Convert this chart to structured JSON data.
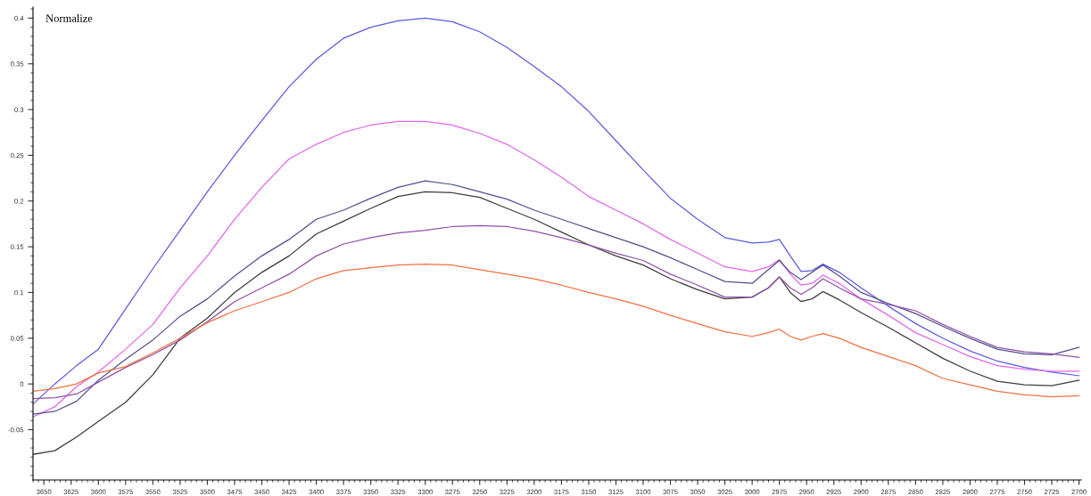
{
  "chart_data": {
    "type": "line",
    "title": "Normalize",
    "x": [
      3660,
      3640,
      3620,
      3600,
      3575,
      3550,
      3525,
      3500,
      3475,
      3450,
      3425,
      3400,
      3375,
      3350,
      3325,
      3300,
      3275,
      3250,
      3225,
      3200,
      3175,
      3150,
      3125,
      3100,
      3075,
      3050,
      3025,
      3000,
      2985,
      2975,
      2965,
      2955,
      2945,
      2935,
      2920,
      2900,
      2875,
      2850,
      2825,
      2800,
      2775,
      2750,
      2725,
      2700
    ],
    "series": [
      {
        "color": "#5a5ae0",
        "values": [
          -0.022,
          0.0,
          0.02,
          0.038,
          0.082,
          0.126,
          0.168,
          0.21,
          0.25,
          0.288,
          0.325,
          0.355,
          0.378,
          0.39,
          0.397,
          0.4,
          0.396,
          0.385,
          0.368,
          0.347,
          0.325,
          0.298,
          0.266,
          0.234,
          0.203,
          0.18,
          0.16,
          0.154,
          0.155,
          0.158,
          0.14,
          0.123,
          0.124,
          0.131,
          0.122,
          0.105,
          0.085,
          0.066,
          0.05,
          0.036,
          0.025,
          0.018,
          0.013,
          0.009
        ]
      },
      {
        "color": "#e066e8",
        "values": [
          -0.036,
          -0.025,
          -0.003,
          0.013,
          0.038,
          0.065,
          0.105,
          0.14,
          0.18,
          0.215,
          0.246,
          0.262,
          0.275,
          0.283,
          0.287,
          0.287,
          0.283,
          0.274,
          0.262,
          0.245,
          0.226,
          0.205,
          0.19,
          0.175,
          0.158,
          0.143,
          0.128,
          0.123,
          0.128,
          0.136,
          0.12,
          0.108,
          0.11,
          0.119,
          0.11,
          0.093,
          0.075,
          0.056,
          0.043,
          0.03,
          0.02,
          0.016,
          0.014,
          0.014
        ]
      },
      {
        "color": "#50508f",
        "values": [
          -0.033,
          -0.03,
          -0.019,
          0.004,
          0.027,
          0.048,
          0.074,
          0.093,
          0.118,
          0.14,
          0.158,
          0.18,
          0.19,
          0.203,
          0.215,
          0.222,
          0.218,
          0.21,
          0.202,
          0.19,
          0.18,
          0.17,
          0.16,
          0.15,
          0.138,
          0.125,
          0.112,
          0.11,
          0.125,
          0.135,
          0.122,
          0.114,
          0.122,
          0.13,
          0.118,
          0.1,
          0.088,
          0.077,
          0.063,
          0.05,
          0.038,
          0.033,
          0.032,
          0.04
        ]
      },
      {
        "color": "#3c3c3c",
        "values": [
          -0.077,
          -0.073,
          -0.058,
          -0.041,
          -0.02,
          0.01,
          0.05,
          0.072,
          0.1,
          0.122,
          0.14,
          0.164,
          0.178,
          0.192,
          0.205,
          0.21,
          0.209,
          0.204,
          0.192,
          0.18,
          0.166,
          0.152,
          0.14,
          0.13,
          0.115,
          0.103,
          0.093,
          0.095,
          0.105,
          0.117,
          0.1,
          0.09,
          0.093,
          0.101,
          0.092,
          0.078,
          0.062,
          0.045,
          0.028,
          0.014,
          0.003,
          -0.001,
          -0.002,
          0.004
        ]
      },
      {
        "color": "#9050a8",
        "values": [
          -0.016,
          -0.015,
          -0.011,
          0.002,
          0.018,
          0.032,
          0.048,
          0.068,
          0.09,
          0.105,
          0.12,
          0.14,
          0.153,
          0.16,
          0.165,
          0.168,
          0.172,
          0.173,
          0.172,
          0.167,
          0.16,
          0.152,
          0.143,
          0.135,
          0.12,
          0.108,
          0.095,
          0.095,
          0.105,
          0.117,
          0.105,
          0.098,
          0.105,
          0.115,
          0.105,
          0.093,
          0.087,
          0.08,
          0.065,
          0.052,
          0.04,
          0.035,
          0.033,
          0.029
        ]
      },
      {
        "color": "#f07040",
        "values": [
          -0.008,
          -0.005,
          0.0,
          0.012,
          0.019,
          0.034,
          0.05,
          0.067,
          0.08,
          0.09,
          0.1,
          0.115,
          0.124,
          0.127,
          0.13,
          0.131,
          0.13,
          0.125,
          0.12,
          0.115,
          0.108,
          0.1,
          0.093,
          0.085,
          0.075,
          0.066,
          0.057,
          0.052,
          0.056,
          0.06,
          0.052,
          0.048,
          0.052,
          0.055,
          0.05,
          0.04,
          0.03,
          0.02,
          0.006,
          -0.001,
          -0.008,
          -0.012,
          -0.014,
          -0.013
        ]
      }
    ],
    "xlim": [
      3660,
      2698
    ],
    "ylim": [
      -0.105,
      0.412
    ],
    "xticks": [
      3650,
      3625,
      3600,
      3575,
      3550,
      3525,
      3500,
      3475,
      3450,
      3425,
      3400,
      3375,
      3350,
      3325,
      3300,
      3275,
      3250,
      3225,
      3200,
      3175,
      3150,
      3125,
      3100,
      3075,
      3050,
      3025,
      3000,
      2975,
      2950,
      2925,
      2900,
      2875,
      2850,
      2825,
      2800,
      2775,
      2750,
      2725,
      2700
    ],
    "yticks": [
      -0.05,
      0,
      0.05,
      0.1,
      0.15,
      0.2,
      0.25,
      0.3,
      0.35,
      0.4
    ],
    "grid": false,
    "marker": "none",
    "line_style": "solid"
  }
}
